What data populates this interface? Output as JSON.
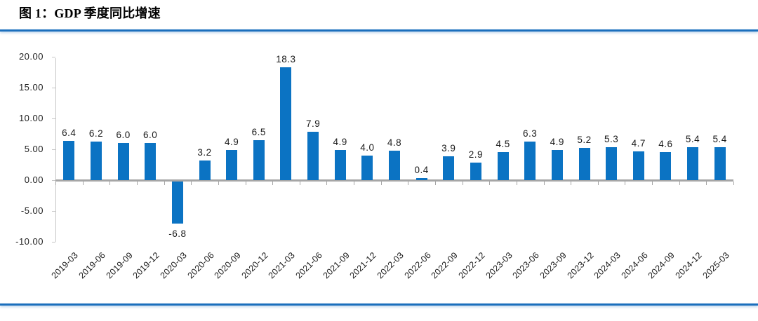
{
  "page": {
    "title": "图 1：GDP 季度同比增速"
  },
  "accent": {
    "rule_blue": "#1b6fbd",
    "rule_glow": "rgba(60,130,195,0.35)"
  },
  "chart_data": {
    "type": "bar",
    "title": "图 1：GDP 季度同比增速",
    "categories": [
      "2019-03",
      "2019-06",
      "2019-09",
      "2019-12",
      "2020-03",
      "2020-06",
      "2020-09",
      "2020-12",
      "2021-03",
      "2021-06",
      "2021-09",
      "2021-12",
      "2022-03",
      "2022-06",
      "2022-09",
      "2022-12",
      "2023-03",
      "2023-06",
      "2023-09",
      "2023-12",
      "2024-03",
      "2024-06",
      "2024-09",
      "2024-12",
      "2025-03"
    ],
    "values": [
      6.4,
      6.2,
      6.0,
      6.0,
      -6.8,
      3.2,
      4.9,
      6.5,
      18.3,
      7.9,
      4.9,
      4.0,
      4.8,
      0.4,
      3.9,
      2.9,
      4.5,
      6.3,
      4.9,
      5.2,
      5.3,
      4.7,
      4.6,
      5.4,
      5.4
    ],
    "data_labels": [
      "6.4",
      "6.2",
      "6.0",
      "6.0",
      "-6.8",
      "3.2",
      "4.9",
      "6.5",
      "18.3",
      "7.9",
      "4.9",
      "4.0",
      "4.8",
      "0.4",
      "3.9",
      "2.9",
      "4.5",
      "6.3",
      "4.9",
      "5.2",
      "5.3",
      "4.7",
      "4.6",
      "5.4",
      "5.4"
    ],
    "ylim": [
      -10,
      20
    ],
    "yticks": [
      20,
      15,
      10,
      5,
      0,
      -5,
      -10
    ],
    "ytick_labels": [
      "20.00",
      "15.00",
      "10.00",
      "5.00",
      "0.00",
      "-5.00",
      "-10.00"
    ],
    "xlabel_rotation": 45,
    "grid": false,
    "legend_position": "none",
    "bar_color": "#0b73c3",
    "axis_line_color": "#a6a6a6",
    "y_axis_line_color": "#c6c6c6"
  }
}
